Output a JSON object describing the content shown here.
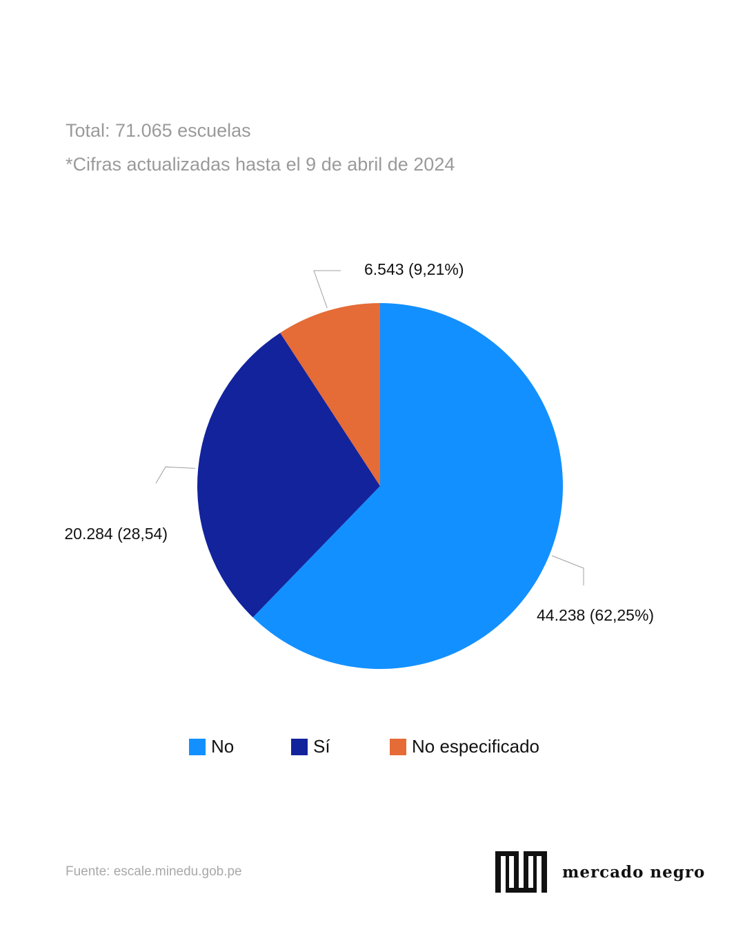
{
  "header": {
    "total": "Total: 71.065 escuelas",
    "note": "*Cifras actualizadas hasta el 9 de abril de 2024"
  },
  "chart_data": {
    "type": "pie",
    "categories": [
      "No",
      "Sí",
      "No especificado"
    ],
    "values": [
      44238,
      20284,
      6543
    ],
    "percentages": [
      62.25,
      28.54,
      9.21
    ],
    "data_labels": [
      "44.238 (62,25%)",
      "20.284 (28,54)",
      "6.543 (9,21%)"
    ],
    "colors": [
      "#1390FF",
      "#12239C",
      "#E56B37"
    ],
    "start": "12 o'clock, clockwise",
    "legend_position": "bottom"
  },
  "legend": {
    "items": [
      {
        "label": "No",
        "color": "#1390FF"
      },
      {
        "label": "Sí",
        "color": "#12239C"
      },
      {
        "label": "No especificado",
        "color": "#E56B37"
      }
    ]
  },
  "footer": {
    "source": "Fuente: escale.minedu.gob.pe",
    "brand": "mercado negro"
  }
}
